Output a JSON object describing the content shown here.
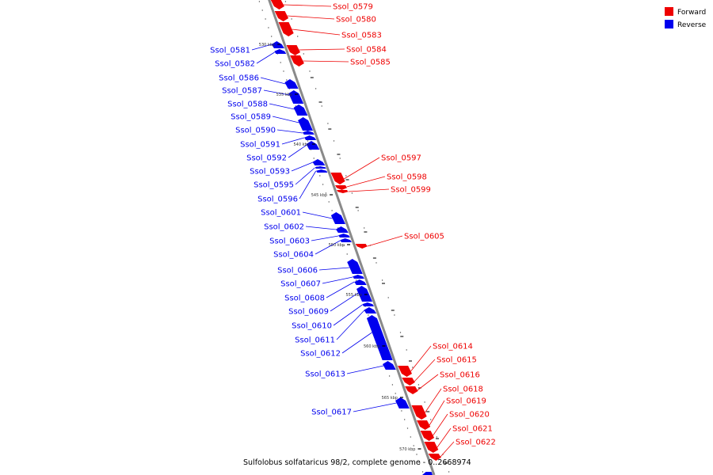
{
  "caption": "Sulfolobus solfataricus 98/2, complete genome - 0..2668974",
  "legend": {
    "forward": {
      "label": "Forward",
      "color": "#ee0000"
    },
    "reverse": {
      "label": "Reverse",
      "color": "#0000ee"
    }
  },
  "ticks": [
    "530 kbp",
    "535 kbp",
    "540 kbp",
    "545 kbp",
    "550 kbp",
    "555 kbp",
    "560 kbp",
    "565 kbp",
    "570 kbp"
  ],
  "colors": {
    "backbone": "#8a8a8a",
    "forward": "#ee0000",
    "reverse": "#0000ee"
  },
  "genes": [
    {
      "label": "Ssol_0579",
      "strand": "forward"
    },
    {
      "label": "Ssol_0580",
      "strand": "forward"
    },
    {
      "label": "Ssol_0583",
      "strand": "forward"
    },
    {
      "label": "Ssol_0584",
      "strand": "forward"
    },
    {
      "label": "Ssol_0585",
      "strand": "forward"
    },
    {
      "label": "Ssol_0581",
      "strand": "reverse"
    },
    {
      "label": "Ssol_0582",
      "strand": "reverse"
    },
    {
      "label": "Ssol_0586",
      "strand": "reverse"
    },
    {
      "label": "Ssol_0587",
      "strand": "reverse"
    },
    {
      "label": "Ssol_0588",
      "strand": "reverse"
    },
    {
      "label": "Ssol_0589",
      "strand": "reverse"
    },
    {
      "label": "Ssol_0590",
      "strand": "reverse"
    },
    {
      "label": "Ssol_0591",
      "strand": "reverse"
    },
    {
      "label": "Ssol_0592",
      "strand": "reverse"
    },
    {
      "label": "Ssol_0593",
      "strand": "reverse"
    },
    {
      "label": "Ssol_0595",
      "strand": "reverse"
    },
    {
      "label": "Ssol_0596",
      "strand": "reverse"
    },
    {
      "label": "Ssol_0597",
      "strand": "forward"
    },
    {
      "label": "Ssol_0598",
      "strand": "forward"
    },
    {
      "label": "Ssol_0599",
      "strand": "forward"
    },
    {
      "label": "Ssol_0601",
      "strand": "reverse"
    },
    {
      "label": "Ssol_0602",
      "strand": "reverse"
    },
    {
      "label": "Ssol_0603",
      "strand": "reverse"
    },
    {
      "label": "Ssol_0604",
      "strand": "reverse"
    },
    {
      "label": "Ssol_0605",
      "strand": "forward"
    },
    {
      "label": "Ssol_0606",
      "strand": "reverse"
    },
    {
      "label": "Ssol_0607",
      "strand": "reverse"
    },
    {
      "label": "Ssol_0608",
      "strand": "reverse"
    },
    {
      "label": "Ssol_0609",
      "strand": "reverse"
    },
    {
      "label": "Ssol_0610",
      "strand": "reverse"
    },
    {
      "label": "Ssol_0611",
      "strand": "reverse"
    },
    {
      "label": "Ssol_0612",
      "strand": "reverse"
    },
    {
      "label": "Ssol_0613",
      "strand": "reverse"
    },
    {
      "label": "Ssol_0617",
      "strand": "reverse"
    },
    {
      "label": "Ssol_0614",
      "strand": "forward"
    },
    {
      "label": "Ssol_0615",
      "strand": "forward"
    },
    {
      "label": "Ssol_0616",
      "strand": "forward"
    },
    {
      "label": "Ssol_0618",
      "strand": "forward"
    },
    {
      "label": "Ssol_0619",
      "strand": "forward"
    },
    {
      "label": "Ssol_0620",
      "strand": "forward"
    },
    {
      "label": "Ssol_0621",
      "strand": "forward"
    },
    {
      "label": "Ssol_0622",
      "strand": "forward"
    }
  ]
}
